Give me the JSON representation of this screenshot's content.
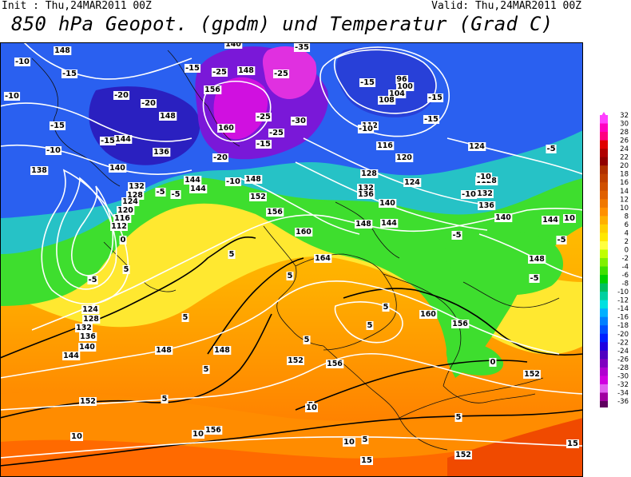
{
  "header": {
    "init": "Init : Thu,24MAR2011 00Z",
    "valid": "Valid: Thu,24MAR2011 00Z",
    "title": "850 hPa Geopot. (gpdm) und Temperatur (Grad C)"
  },
  "colorbar": {
    "ticks": [
      "32",
      "30",
      "28",
      "26",
      "24",
      "22",
      "20",
      "18",
      "16",
      "14",
      "12",
      "10",
      "8",
      "6",
      "4",
      "2",
      "0",
      "-2",
      "-4",
      "-6",
      "-8",
      "-10",
      "-12",
      "-14",
      "-16",
      "-18",
      "-20",
      "-22",
      "-24",
      "-26",
      "-28",
      "-30",
      "-32",
      "-34",
      "-36"
    ],
    "colors": [
      "#ff40ff",
      "#ff00c0",
      "#ff0080",
      "#e00000",
      "#b00000",
      "#900000",
      "#b03000",
      "#c04000",
      "#d05000",
      "#e06000",
      "#f07800",
      "#ff9000",
      "#ffb000",
      "#ffd000",
      "#ffe800",
      "#ffff40",
      "#c0ff00",
      "#80f000",
      "#40e000",
      "#00d000",
      "#00c060",
      "#00d0a0",
      "#00e0e0",
      "#00b0ff",
      "#0080ff",
      "#0050ff",
      "#0020ff",
      "#2000e0",
      "#5000c0",
      "#8000c0",
      "#b000d0",
      "#d000e0",
      "#e060f0",
      "#a000a0",
      "#600060"
    ]
  },
  "geopotential_labels": [
    {
      "text": "148"
    },
    {
      "text": "140"
    },
    {
      "text": "148"
    },
    {
      "text": "156"
    },
    {
      "text": "160"
    },
    {
      "text": "148"
    },
    {
      "text": "144"
    },
    {
      "text": "136"
    },
    {
      "text": "140"
    },
    {
      "text": "138"
    },
    {
      "text": "132"
    },
    {
      "text": "128"
    },
    {
      "text": "124"
    },
    {
      "text": "120"
    },
    {
      "text": "116"
    },
    {
      "text": "112"
    },
    {
      "text": "144"
    },
    {
      "text": "148"
    },
    {
      "text": "152"
    },
    {
      "text": "156"
    },
    {
      "text": "160"
    },
    {
      "text": "164"
    },
    {
      "text": "112"
    },
    {
      "text": "116"
    },
    {
      "text": "120"
    },
    {
      "text": "124"
    },
    {
      "text": "128"
    },
    {
      "text": "132"
    },
    {
      "text": "136"
    },
    {
      "text": "140"
    },
    {
      "text": "144"
    },
    {
      "text": "148"
    },
    {
      "text": "96"
    },
    {
      "text": "100"
    },
    {
      "text": "104"
    },
    {
      "text": "108"
    },
    {
      "text": "124"
    },
    {
      "text": "128"
    },
    {
      "text": "132"
    },
    {
      "text": "136"
    },
    {
      "text": "140"
    },
    {
      "text": "144"
    },
    {
      "text": "148"
    },
    {
      "text": "124"
    },
    {
      "text": "128"
    },
    {
      "text": "132"
    },
    {
      "text": "136"
    },
    {
      "text": "140"
    },
    {
      "text": "144"
    },
    {
      "text": "148"
    },
    {
      "text": "148"
    },
    {
      "text": "152"
    },
    {
      "text": "156"
    },
    {
      "text": "160"
    },
    {
      "text": "156"
    },
    {
      "text": "152"
    },
    {
      "text": "152"
    },
    {
      "text": "156"
    },
    {
      "text": "152"
    },
    {
      "text": "144"
    },
    {
      "text": "128"
    }
  ],
  "temperature_labels": [
    {
      "text": "-10"
    },
    {
      "text": "-15"
    },
    {
      "text": "-10"
    },
    {
      "text": "-20"
    },
    {
      "text": "-20"
    },
    {
      "text": "-15"
    },
    {
      "text": "-10"
    },
    {
      "text": "-15"
    },
    {
      "text": "-15"
    },
    {
      "text": "-25"
    },
    {
      "text": "-25"
    },
    {
      "text": "-35"
    },
    {
      "text": "-30"
    },
    {
      "text": "-25"
    },
    {
      "text": "-25"
    },
    {
      "text": "-20"
    },
    {
      "text": "-15"
    },
    {
      "text": "-15"
    },
    {
      "text": "-10"
    },
    {
      "text": "-15"
    },
    {
      "text": "-15"
    },
    {
      "text": "-10"
    },
    {
      "text": "-10"
    },
    {
      "text": "-10"
    },
    {
      "text": "-5"
    },
    {
      "text": "-5"
    },
    {
      "text": "0"
    },
    {
      "text": "-5"
    },
    {
      "text": "5"
    },
    {
      "text": "5"
    },
    {
      "text": "-5"
    },
    {
      "text": "-5"
    },
    {
      "text": "5"
    },
    {
      "text": "5"
    },
    {
      "text": "0"
    },
    {
      "text": "-5"
    },
    {
      "text": "5"
    },
    {
      "text": "5"
    },
    {
      "text": "5"
    },
    {
      "text": "5"
    },
    {
      "text": "5"
    },
    {
      "text": "10"
    },
    {
      "text": "10"
    },
    {
      "text": "10"
    },
    {
      "text": "5"
    },
    {
      "text": "5"
    },
    {
      "text": "10"
    },
    {
      "text": "15"
    },
    {
      "text": "15"
    },
    {
      "text": "5"
    },
    {
      "text": "10"
    },
    {
      "text": "-5"
    }
  ]
}
